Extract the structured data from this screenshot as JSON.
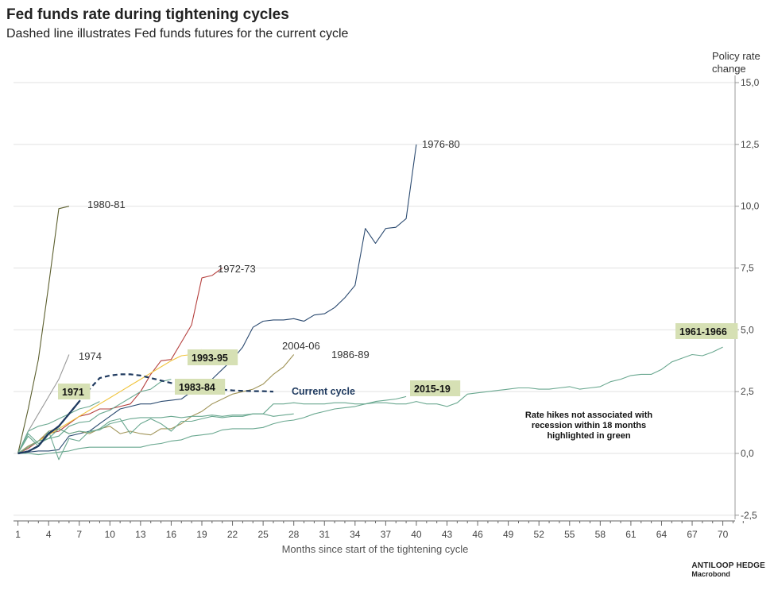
{
  "title": "Fed funds rate during tightening cycles",
  "subtitle": "Dashed line illustrates Fed funds futures for the current cycle",
  "brand": {
    "name": "ANTILOOP HEDGE",
    "source": "Macrobond"
  },
  "note": [
    "Rate hikes not associated with",
    "recession within 18 months",
    "highlighted in green"
  ],
  "chart_data": {
    "type": "line",
    "xlabel": "Months since start of the tightening cycle",
    "ylabel": [
      "Policy rate",
      "change"
    ],
    "xlim": [
      1,
      72
    ],
    "ylim": [
      -2.5,
      15
    ],
    "xticks": [
      1,
      4,
      7,
      10,
      13,
      16,
      19,
      22,
      25,
      28,
      31,
      34,
      37,
      40,
      43,
      46,
      49,
      52,
      55,
      58,
      61,
      64,
      67,
      70
    ],
    "yticks": [
      15,
      12.5,
      10,
      7.5,
      5,
      2.5,
      0,
      -2.5
    ],
    "ytick_labels": [
      "15,0",
      "12,5",
      "10,0",
      "7,5",
      "5,0",
      "2,5",
      "0,0",
      "-2,5"
    ],
    "grid": true,
    "series": [
      {
        "name": "1976-80",
        "color": "#2b4a70",
        "label_highlight": false,
        "values": [
          0,
          0.05,
          0.1,
          0.1,
          0.15,
          0.7,
          0.8,
          0.9,
          1.2,
          1.5,
          1.8,
          1.9,
          2.0,
          2.0,
          2.1,
          2.15,
          2.2,
          2.5,
          2.7,
          3.0,
          3.4,
          3.8,
          4.3,
          5.1,
          5.35,
          5.4,
          5.4,
          5.45,
          5.35,
          5.6,
          5.65,
          5.9,
          6.3,
          6.8,
          9.1,
          8.5,
          9.1,
          9.15,
          9.5,
          12.5
        ]
      },
      {
        "name": "1980-81",
        "color": "#5c5f2e",
        "label_highlight": false,
        "values": [
          0,
          1.8,
          3.8,
          6.8,
          9.9,
          10.0
        ]
      },
      {
        "name": "1972-73",
        "color": "#b5403e",
        "label_highlight": false,
        "values": [
          0,
          0.2,
          0.5,
          0.8,
          0.9,
          1.2,
          1.5,
          1.6,
          1.8,
          1.8,
          1.9,
          2.0,
          2.5,
          3.2,
          3.75,
          3.8,
          4.5,
          5.2,
          7.1,
          7.2,
          7.5
        ]
      },
      {
        "name": "1974",
        "color": "#999999",
        "label_highlight": false,
        "values": [
          0,
          0.9,
          1.6,
          2.3,
          3.0,
          4.0
        ]
      },
      {
        "name": "2004-06",
        "color": "#f0c43c",
        "label_highlight": false,
        "values": [
          0,
          0.25,
          0.5,
          0.75,
          1.0,
          1.25,
          1.5,
          1.75,
          2.0,
          2.25,
          2.5,
          2.75,
          3.0,
          3.25,
          3.5,
          3.75,
          3.95,
          4.0,
          4.2
        ]
      },
      {
        "name": "1986-89",
        "color": "#a09458",
        "label_highlight": false,
        "values": [
          0,
          0.3,
          0.5,
          0.9,
          1.0,
          0.8,
          0.9,
          0.8,
          1.0,
          1.1,
          0.8,
          0.9,
          0.8,
          0.75,
          1.0,
          1.0,
          1.2,
          1.5,
          1.7,
          2.0,
          2.2,
          2.4,
          2.5,
          2.6,
          2.8,
          3.2,
          3.5,
          4.0
        ]
      },
      {
        "name": "1983-84",
        "color": "#6aa890",
        "label_highlight": true,
        "values": [
          0,
          0.8,
          0.4,
          0.6,
          1.0,
          0.8,
          0.9,
          0.85,
          1.0,
          1.3,
          1.4,
          0.8,
          1.2,
          1.4,
          1.2,
          0.9,
          1.3,
          1.3,
          1.4,
          1.5,
          1.45,
          1.5,
          1.5,
          1.6,
          1.6,
          1.5,
          1.55,
          1.6
        ]
      },
      {
        "name": "1993-95",
        "color": "#6aa890",
        "label_highlight": true,
        "values": [
          0,
          0.25,
          0.5,
          0.6,
          0.7,
          1.1,
          1.25,
          1.3,
          1.6,
          1.75,
          2.0,
          2.25,
          2.5,
          2.6,
          2.9,
          3.0
        ]
      },
      {
        "name": "1971",
        "color": "#6aa890",
        "label_highlight": true,
        "values": [
          0,
          0.9,
          1.1,
          1.2,
          1.4,
          1.6,
          1.8,
          1.9,
          2.1
        ]
      },
      {
        "name": "2015-19",
        "color": "#6aa890",
        "label_highlight": true,
        "values": [
          0,
          0,
          -0.05,
          0,
          0.05,
          0.1,
          0.2,
          0.25,
          0.25,
          0.25,
          0.25,
          0.25,
          0.25,
          0.35,
          0.4,
          0.5,
          0.55,
          0.7,
          0.75,
          0.8,
          0.95,
          1.0,
          1.0,
          1.0,
          1.05,
          1.2,
          1.3,
          1.35,
          1.45,
          1.6,
          1.7,
          1.8,
          1.85,
          1.9,
          2.0,
          2.1,
          2.15,
          2.2,
          2.3
        ]
      },
      {
        "name": "1961-1966",
        "color": "#6aa890",
        "label_highlight": true,
        "values": [
          0,
          0.7,
          0.3,
          0.9,
          -0.25,
          0.6,
          0.5,
          0.9,
          0.95,
          1.2,
          1.3,
          1.4,
          1.45,
          1.45,
          1.45,
          1.5,
          1.45,
          1.5,
          1.5,
          1.55,
          1.5,
          1.55,
          1.55,
          1.6,
          1.6,
          2.0,
          2.0,
          2.05,
          2.0,
          2.0,
          2.0,
          2.05,
          2.05,
          2.0,
          2.0,
          2.05,
          2.05,
          2.0,
          2.0,
          2.1,
          2.0,
          2.0,
          1.9,
          2.05,
          2.4,
          2.45,
          2.5,
          2.55,
          2.6,
          2.65,
          2.65,
          2.6,
          2.6,
          2.65,
          2.7,
          2.6,
          2.65,
          2.7,
          2.9,
          3.0,
          3.15,
          3.2,
          3.2,
          3.4,
          3.7,
          3.85,
          4.0,
          3.95,
          4.1,
          4.3
        ]
      },
      {
        "name": "Current cycle",
        "color": "#1f3a5f",
        "dashed": true,
        "label_highlight": false,
        "values": [
          0,
          0.08,
          0.3,
          0.8,
          1.1,
          1.6,
          2.1,
          2.6,
          3.05,
          3.15,
          3.2,
          3.2,
          3.15,
          3.05,
          2.95,
          2.85,
          2.75,
          2.7,
          2.65,
          2.6,
          2.58,
          2.55,
          2.53,
          2.52,
          2.52,
          2.5
        ]
      }
    ]
  }
}
